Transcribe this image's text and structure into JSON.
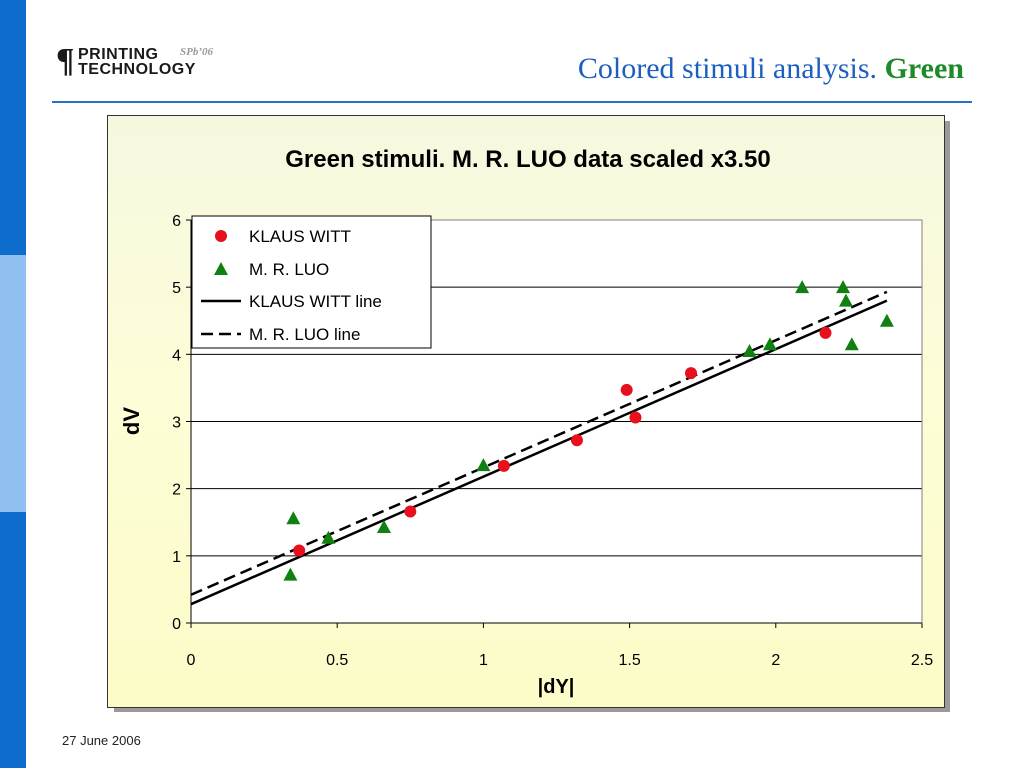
{
  "slide": {
    "title_main": "Colored stimuli analysis.",
    "title_accent": "Green",
    "footer_date": "27 June 2006"
  },
  "logo": {
    "line1": "PRINTING",
    "line2": "TECHNOLOGY",
    "tag": "SPb’06"
  },
  "colors": {
    "accent_blue": "#1c5fc0",
    "accent_green": "#1f8a2a",
    "klaus_witt": "#e8101c",
    "luo": "#108010"
  },
  "chart_data": {
    "type": "scatter",
    "title": "Green stimuli. M. R. LUO data scaled x3.50",
    "xlabel": "|dY|",
    "ylabel": "dV",
    "xlim": [
      0,
      2.5
    ],
    "ylim": [
      0,
      6
    ],
    "xticks": [
      "0",
      "0.5",
      "1",
      "1.5",
      "2",
      "2.5"
    ],
    "yticks": [
      "0",
      "1",
      "2",
      "3",
      "4",
      "5",
      "6"
    ],
    "grid": "horizontal",
    "legend_position": "top-left",
    "series": [
      {
        "name": "KLAUS WITT",
        "marker": "circle",
        "points": [
          [
            0.37,
            1.08
          ],
          [
            0.75,
            1.66
          ],
          [
            1.07,
            2.34
          ],
          [
            1.32,
            2.72
          ],
          [
            1.49,
            3.47
          ],
          [
            1.52,
            3.06
          ],
          [
            1.71,
            3.72
          ],
          [
            2.17,
            4.32
          ]
        ]
      },
      {
        "name": "M. R. LUO",
        "marker": "triangle",
        "points": [
          [
            0.34,
            0.72
          ],
          [
            0.35,
            1.56
          ],
          [
            0.47,
            1.27
          ],
          [
            0.66,
            1.43
          ],
          [
            1.0,
            2.35
          ],
          [
            1.91,
            4.05
          ],
          [
            1.98,
            4.15
          ],
          [
            2.09,
            5.0
          ],
          [
            2.23,
            5.0
          ],
          [
            2.24,
            4.8
          ],
          [
            2.26,
            4.15
          ],
          [
            2.38,
            4.5
          ]
        ]
      },
      {
        "name": "KLAUS WITT line",
        "style": "solid",
        "points": [
          [
            0.0,
            0.28
          ],
          [
            2.38,
            4.8
          ]
        ]
      },
      {
        "name": "M. R. LUO line",
        "style": "dashed",
        "points": [
          [
            0.0,
            0.42
          ],
          [
            2.38,
            4.93
          ]
        ]
      }
    ]
  }
}
